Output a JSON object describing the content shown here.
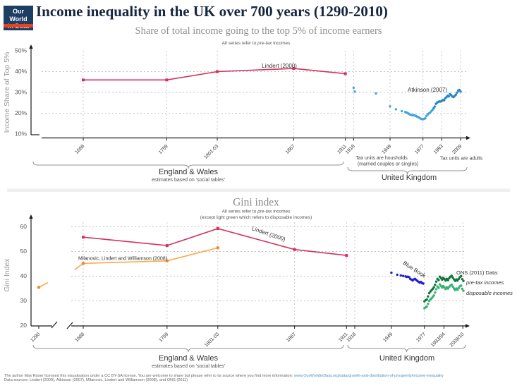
{
  "header": {
    "logo": {
      "line1": "Our World",
      "line2": "in Data"
    },
    "title": "Income inequality in the UK over 700 years (1290-2010)",
    "subtitle": "Share of total income going to the top 5% of income earners"
  },
  "footer": {
    "license_text": "The author Max Roser licensed this visualisation under a CC BY-SA license. You are  welcome to share but please refer to its source where you find more information: ",
    "link": "www.OurWorldinData.org/data/growth-and-distribution-of-prosperity/income-inequality",
    "sources": "Data sources: Lindert (2000), Atkinson (2007), Milanovic, Lindert and Williamson (2008), and ONS (2011)"
  },
  "colors": {
    "navy": "#1d3d63",
    "logo_red": "#e8431f",
    "pink": "#d5315f",
    "orange_line": "#f9aa4d",
    "orange_marker": "#ed8b33",
    "atkinson_blue": "#41a6dc",
    "atkinson_blue_dark": "#2287c7",
    "bluebook_blue": "#2020cc",
    "ons_dark_green": "#11763b",
    "ons_light_green": "#37b273",
    "grid": "#c3c3c3",
    "axis": "#1a1a1a",
    "brace": "#909090",
    "muted_text": "#8f8f8f"
  },
  "chart_data": [
    {
      "type": "line+scatter",
      "title": "Share of total income going to the top 5% of income earners",
      "note_parts": [
        "All series refer to ",
        "pre-tax",
        " incomes"
      ],
      "ylabel": "Income Share of Top 5%",
      "ylim": [
        10,
        50
      ],
      "ytick_values": [
        10,
        20,
        30,
        40,
        50
      ],
      "ytick_labels": [
        "10%",
        "20%",
        "30%",
        "40%",
        "50%"
      ],
      "grid_values": [
        20,
        30,
        40
      ],
      "xtick_years": [
        1688,
        1759,
        1802,
        1867,
        1911,
        1918,
        1949,
        1977,
        1993,
        2009
      ],
      "xtick_labels": [
        "1688",
        "1759",
        "1801-03",
        "1867",
        "1911",
        "1918",
        "1949",
        "1977",
        "1993",
        "2009"
      ],
      "series": [
        {
          "name": "Lindert (2000)",
          "type": "line",
          "marker": "square",
          "color": "#d5315f",
          "points": [
            [
              1688,
              36
            ],
            [
              1759,
              36
            ],
            [
              1802,
              40
            ],
            [
              1867,
              41.5
            ],
            [
              1911,
              39
            ]
          ]
        },
        {
          "name": "Atkinson (2007)",
          "type": "scatter",
          "color": "#41a6dc",
          "color_late": "#2287c7",
          "late_from": 1986,
          "points": [
            [
              1918,
              32.2
            ],
            [
              1919,
              30.4
            ],
            [
              1937,
              29.5
            ],
            [
              1949,
              23.3
            ],
            [
              1954,
              21.9
            ],
            [
              1959,
              21.0
            ],
            [
              1962,
              20.6
            ],
            [
              1963,
              20.3
            ],
            [
              1964,
              20.1
            ],
            [
              1965,
              19.7
            ],
            [
              1966,
              19.4
            ],
            [
              1967,
              19.2
            ],
            [
              1968,
              19.0
            ],
            [
              1969,
              19.1
            ],
            [
              1970,
              18.9
            ],
            [
              1971,
              18.7
            ],
            [
              1972,
              18.4
            ],
            [
              1973,
              18.1
            ],
            [
              1974,
              17.8
            ],
            [
              1975,
              17.4
            ],
            [
              1976,
              17.2
            ],
            [
              1977,
              17.1
            ],
            [
              1978,
              17.3
            ],
            [
              1979,
              17.6
            ],
            [
              1980,
              18.7
            ],
            [
              1981,
              19.4
            ],
            [
              1982,
              19.9
            ],
            [
              1983,
              20.2
            ],
            [
              1984,
              20.9
            ],
            [
              1985,
              21.5
            ],
            [
              1986,
              22.3
            ],
            [
              1987,
              23.2
            ],
            [
              1988,
              24.5
            ],
            [
              1989,
              25.1
            ],
            [
              1990,
              25.4
            ],
            [
              1991,
              25.7
            ],
            [
              1992,
              25.6
            ],
            [
              1993,
              25.9
            ],
            [
              1994,
              26.4
            ],
            [
              1995,
              26.2
            ],
            [
              1996,
              27.2
            ],
            [
              1997,
              27.7
            ],
            [
              1998,
              28.4
            ],
            [
              1999,
              28.1
            ],
            [
              2000,
              29.2
            ],
            [
              2001,
              28.7
            ],
            [
              2002,
              28.0
            ],
            [
              2003,
              27.8
            ],
            [
              2004,
              28.3
            ],
            [
              2005,
              28.9
            ],
            [
              2006,
              29.9
            ],
            [
              2007,
              30.9
            ],
            [
              2008,
              31.2
            ],
            [
              2009,
              30.4
            ]
          ]
        }
      ],
      "text_labels": [
        "Lindert (2000)",
        "Atkinson (2007)"
      ],
      "annotations": [
        "Tax units are housholds",
        "(married couples or singles)",
        "Tax units are adults"
      ],
      "braces": [
        {
          "label": "England & Wales",
          "sublabel": "estimates based on 'social tables'"
        },
        {
          "label": "United Kingdom"
        }
      ]
    },
    {
      "type": "line+scatter",
      "title": "Gini index",
      "note_parts": [
        "All series refer to ",
        "pre-tax",
        " incomes"
      ],
      "note2": "(except light green which refers to disposable incomes)",
      "ylabel": "Gini Index",
      "ylim": [
        20,
        60
      ],
      "ytick_values": [
        20,
        30,
        40,
        50,
        60
      ],
      "ytick_labels": [
        "20",
        "30",
        "40",
        "50",
        "60"
      ],
      "grid_values": [
        30,
        40,
        50,
        60
      ],
      "xtick_years": [
        1290,
        1688,
        1759,
        1802,
        1867,
        1911,
        1918,
        1949,
        1977,
        1993.5,
        2009.5
      ],
      "xtick_labels": [
        "1290",
        "1688",
        "1759",
        "1801-03",
        "1867",
        "1911",
        "1918",
        "1949",
        "1977",
        "1993/94",
        "2009/10"
      ],
      "axis_break_after": 1290,
      "series": [
        {
          "name": "Milanovic, Lindert and Williamson (2008)",
          "type": "line-broken",
          "marker": "circle",
          "color": "#f9aa4d",
          "marker_color": "#ed8b33",
          "points": [
            [
              1290,
              35.5
            ],
            [
              1688,
              45.2
            ],
            [
              1759,
              46.2
            ],
            [
              1802,
              51.5
            ]
          ]
        },
        {
          "name": "Lindert (2000)",
          "type": "line",
          "marker": "square",
          "color": "#d5315f",
          "points": [
            [
              1688,
              55.8
            ],
            [
              1759,
              52.4
            ],
            [
              1802,
              59.3
            ],
            [
              1867,
              50.8
            ],
            [
              1911,
              48.4
            ]
          ]
        },
        {
          "name": "Blue Book",
          "type": "scatter",
          "color": "#2020cc",
          "points": [
            [
              1949,
              41.4
            ],
            [
              1954,
              40.6
            ],
            [
              1957,
              40.3
            ],
            [
              1959,
              40.1
            ],
            [
              1961,
              39.9
            ],
            [
              1962,
              39.7
            ],
            [
              1963,
              39.8
            ],
            [
              1964,
              39.6
            ],
            [
              1965,
              38.9
            ],
            [
              1966,
              38.6
            ],
            [
              1967,
              38.3
            ],
            [
              1968,
              38.7
            ],
            [
              1969,
              38.9
            ],
            [
              1970,
              38.5
            ],
            [
              1971,
              38.1
            ],
            [
              1972,
              37.7
            ],
            [
              1973,
              37.4
            ],
            [
              1974,
              37.7
            ],
            [
              1975,
              37.2
            ],
            [
              1976,
              37.0
            ]
          ]
        },
        {
          "name": "ONS (2011) pre-tax incomes",
          "type": "scatter",
          "color": "#11763b",
          "points": [
            [
              1977,
              29.8
            ],
            [
              1978,
              30.3
            ],
            [
              1979,
              30.6
            ],
            [
              1980,
              31.8
            ],
            [
              1981,
              33.1
            ],
            [
              1982,
              33.8
            ],
            [
              1983,
              34.3
            ],
            [
              1984,
              34.9
            ],
            [
              1985,
              35.5
            ],
            [
              1986,
              36.5
            ],
            [
              1987,
              37.8
            ],
            [
              1988,
              38.9
            ],
            [
              1989,
              38.4
            ],
            [
              1990,
              39.8
            ],
            [
              1991,
              39.2
            ],
            [
              1992,
              38.6
            ],
            [
              1993,
              39.3
            ],
            [
              1994,
              38.8
            ],
            [
              1995,
              38.2
            ],
            [
              1996,
              38.9
            ],
            [
              1997,
              38.4
            ],
            [
              1998,
              39.2
            ],
            [
              1999,
              39.8
            ],
            [
              2000,
              40.2
            ],
            [
              2001,
              39.4
            ],
            [
              2002,
              38.7
            ],
            [
              2003,
              38.1
            ],
            [
              2004,
              38.7
            ],
            [
              2005,
              38.2
            ],
            [
              2006,
              38.9
            ],
            [
              2007,
              39.6
            ],
            [
              2008,
              40.0
            ],
            [
              2009,
              38.8
            ],
            [
              2010,
              38.1
            ]
          ]
        },
        {
          "name": "ONS (2011) disposable incomes",
          "type": "scatter",
          "color": "#37b273",
          "points": [
            [
              1977,
              27.0
            ],
            [
              1978,
              27.4
            ],
            [
              1979,
              27.7
            ],
            [
              1980,
              28.8
            ],
            [
              1981,
              30.0
            ],
            [
              1982,
              30.6
            ],
            [
              1983,
              31.0
            ],
            [
              1984,
              31.6
            ],
            [
              1985,
              32.2
            ],
            [
              1986,
              33.4
            ],
            [
              1987,
              34.7
            ],
            [
              1988,
              35.8
            ],
            [
              1989,
              35.3
            ],
            [
              1990,
              36.7
            ],
            [
              1991,
              36.0
            ],
            [
              1992,
              35.4
            ],
            [
              1993,
              36.0
            ],
            [
              1994,
              35.4
            ],
            [
              1995,
              34.8
            ],
            [
              1996,
              35.5
            ],
            [
              1997,
              35.0
            ],
            [
              1998,
              35.7
            ],
            [
              1999,
              36.2
            ],
            [
              2000,
              36.6
            ],
            [
              2001,
              35.8
            ],
            [
              2002,
              35.0
            ],
            [
              2003,
              34.4
            ],
            [
              2004,
              35.0
            ],
            [
              2005,
              34.5
            ],
            [
              2006,
              35.2
            ],
            [
              2007,
              35.9
            ],
            [
              2008,
              36.2
            ],
            [
              2009,
              34.9
            ],
            [
              2010,
              34.1
            ]
          ]
        }
      ],
      "text_labels": [
        "Milanovic, Lindert and Williamson (2008)",
        "Lindert (2000)",
        "Blue Book",
        "ONS (2011) Data:",
        "pre-tax incomes",
        "disposable incomes"
      ],
      "braces": [
        {
          "label": "England & Wales",
          "sublabel": "estimates based on 'social tables'"
        },
        {
          "label": "United Kingdom"
        }
      ]
    }
  ]
}
